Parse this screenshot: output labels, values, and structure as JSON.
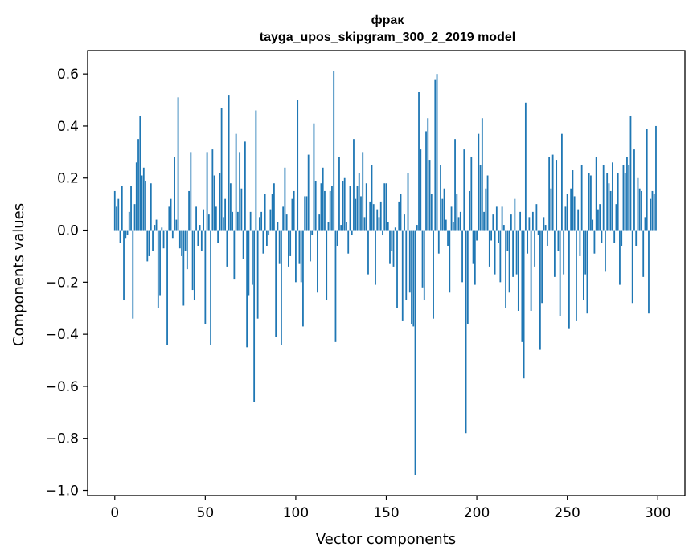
{
  "chart_data": {
    "type": "bar",
    "title": "фрак",
    "subtitle": "tayga_upos_skipgram_300_2_2019 model",
    "xlabel": "Vector components",
    "ylabel": "Components values",
    "xlim": [
      -15,
      315
    ],
    "ylim": [
      -1.02,
      0.69
    ],
    "xticks": [
      0,
      50,
      100,
      150,
      200,
      250,
      300
    ],
    "yticks": [
      -1.0,
      -0.8,
      -0.6,
      -0.4,
      -0.2,
      0.0,
      0.2,
      0.4,
      0.6
    ],
    "ytick_labels": [
      "−1.0",
      "−0.8",
      "−0.6",
      "−0.4",
      "−0.2",
      "0.0",
      "0.2",
      "0.4",
      "0.6"
    ],
    "xtick_labels": [
      "0",
      "50",
      "100",
      "150",
      "200",
      "250",
      "300"
    ],
    "bar_color": "#1f77b4",
    "grid": false,
    "x": "0..299 (one bar per vector component)",
    "values": [
      0.15,
      0.09,
      0.12,
      -0.05,
      0.17,
      -0.27,
      -0.03,
      -0.02,
      0.07,
      0.17,
      -0.34,
      0.1,
      0.26,
      0.35,
      0.44,
      0.21,
      0.24,
      0.19,
      -0.12,
      -0.1,
      0.18,
      -0.08,
      0.02,
      0.04,
      -0.3,
      -0.25,
      0.01,
      -0.07,
      0.0,
      -0.44,
      0.09,
      0.12,
      -0.03,
      0.28,
      0.04,
      0.51,
      -0.07,
      -0.1,
      -0.29,
      -0.08,
      -0.15,
      0.15,
      0.3,
      -0.23,
      -0.27,
      0.09,
      -0.06,
      0.02,
      -0.08,
      0.08,
      -0.36,
      0.3,
      0.06,
      -0.44,
      0.31,
      0.21,
      0.09,
      -0.05,
      0.22,
      0.47,
      0.05,
      0.12,
      -0.14,
      0.52,
      0.18,
      0.07,
      -0.19,
      0.37,
      0.07,
      0.3,
      0.16,
      -0.11,
      0.34,
      -0.45,
      -0.25,
      0.07,
      -0.21,
      -0.66,
      0.46,
      -0.34,
      0.05,
      0.07,
      -0.09,
      0.14,
      -0.06,
      -0.02,
      0.08,
      0.14,
      0.18,
      -0.41,
      0.03,
      -0.13,
      -0.44,
      0.09,
      0.24,
      0.06,
      -0.14,
      -0.1,
      0.12,
      0.15,
      -0.2,
      0.5,
      -0.13,
      -0.2,
      -0.37,
      0.13,
      0.13,
      0.29,
      -0.12,
      -0.02,
      0.41,
      0.19,
      -0.24,
      0.06,
      0.18,
      0.24,
      0.15,
      -0.27,
      0.03,
      0.15,
      0.17,
      0.61,
      -0.43,
      -0.06,
      0.28,
      0.02,
      0.19,
      0.2,
      0.03,
      -0.09,
      0.17,
      -0.02,
      0.35,
      0.12,
      0.17,
      0.22,
      0.13,
      0.3,
      0.05,
      0.18,
      -0.17,
      0.11,
      0.25,
      0.1,
      -0.21,
      0.08,
      0.05,
      0.11,
      -0.02,
      0.18,
      0.18,
      0.03,
      -0.13,
      -0.08,
      -0.14,
      0.01,
      -0.3,
      0.11,
      0.14,
      -0.35,
      0.06,
      -0.27,
      0.22,
      -0.24,
      -0.36,
      -0.37,
      -0.94,
      0.02,
      0.53,
      0.31,
      -0.22,
      -0.27,
      0.38,
      0.43,
      0.27,
      0.14,
      -0.34,
      0.58,
      0.6,
      -0.09,
      0.25,
      0.12,
      0.16,
      0.04,
      -0.06,
      -0.24,
      0.09,
      0.03,
      0.35,
      0.14,
      0.05,
      0.07,
      -0.2,
      0.31,
      -0.78,
      -0.36,
      0.15,
      0.28,
      -0.13,
      -0.21,
      -0.04,
      0.37,
      0.25,
      0.43,
      0.07,
      0.16,
      0.21,
      -0.14,
      -0.04,
      0.06,
      -0.17,
      0.09,
      -0.05,
      -0.2,
      0.09,
      0.02,
      -0.3,
      -0.08,
      -0.24,
      0.06,
      -0.18,
      0.12,
      -0.17,
      -0.31,
      0.07,
      -0.43,
      -0.57,
      0.49,
      -0.09,
      0.05,
      -0.31,
      0.07,
      -0.14,
      0.1,
      -0.02,
      -0.46,
      -0.28,
      0.05,
      0.02,
      -0.06,
      0.28,
      0.16,
      0.29,
      -0.18,
      0.27,
      -0.08,
      -0.33,
      0.37,
      -0.17,
      0.09,
      0.14,
      -0.38,
      0.16,
      0.23,
      0.13,
      -0.35,
      0.08,
      -0.1,
      0.25,
      -0.27,
      -0.17,
      -0.32,
      0.22,
      0.21,
      0.04,
      -0.09,
      0.28,
      0.08,
      0.1,
      -0.05,
      0.25,
      -0.16,
      0.22,
      0.18,
      0.15,
      0.26,
      -0.05,
      0.1,
      0.22,
      -0.21,
      -0.06,
      0.25,
      0.22,
      0.28,
      0.25,
      0.44,
      -0.28,
      0.31,
      -0.06,
      0.2,
      0.16,
      0.15,
      -0.18,
      0.05,
      0.39,
      -0.32,
      0.12,
      0.15,
      0.14,
      0.4
    ]
  }
}
